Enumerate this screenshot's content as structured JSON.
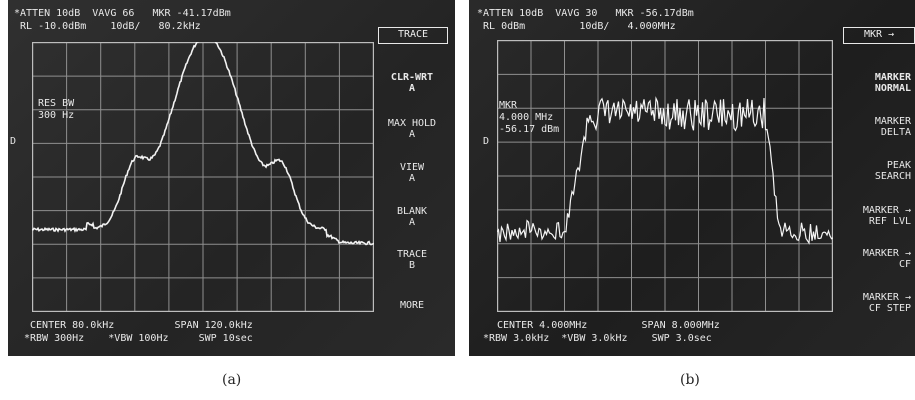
{
  "panel_a": {
    "header_line1": "*ATTEN 10dB  VAVG 66   MKR -41.17dBm",
    "header_line2": " RL -10.0dBm    10dB/   80.2kHz",
    "marker_d": "D",
    "annotation": "RES BW\n300 Hz",
    "footer_line1": " CENTER 80.0kHz          SPAN 120.0kHz",
    "footer_line2": "*RBW 300Hz    *VBW 100Hz     SWP 10sec",
    "title_key": "TRACE",
    "softkeys": [
      "CLR-WRT\nA",
      "MAX HOLD\nA",
      "VIEW\nA",
      "BLANK\nA",
      "TRACE\nB",
      "MORE"
    ],
    "caption": "(a)"
  },
  "panel_b": {
    "header_line1": "*ATTEN 10dB  VAVG 30   MKR -56.17dBm",
    "header_line2": " RL 0dBm         10dB/   4.000MHz",
    "marker_d": "D",
    "annotation": "MKR\n4.000 MHz\n-56.17 dBm",
    "footer_line1": " CENTER 4.000MHz         SPAN 8.000MHz",
    "footer_line2": "*RBW 3.0kHz  *VBW 3.0kHz    SWP 3.0sec",
    "title_key": "MKR →",
    "softkeys": [
      "MARKER\nNORMAL",
      "MARKER\nDELTA",
      "PEAK\nSEARCH",
      "MARKER →\nREF LVL",
      "MARKER →\nCF",
      "MARKER →\nCF STEP"
    ],
    "caption": "(b)"
  }
}
